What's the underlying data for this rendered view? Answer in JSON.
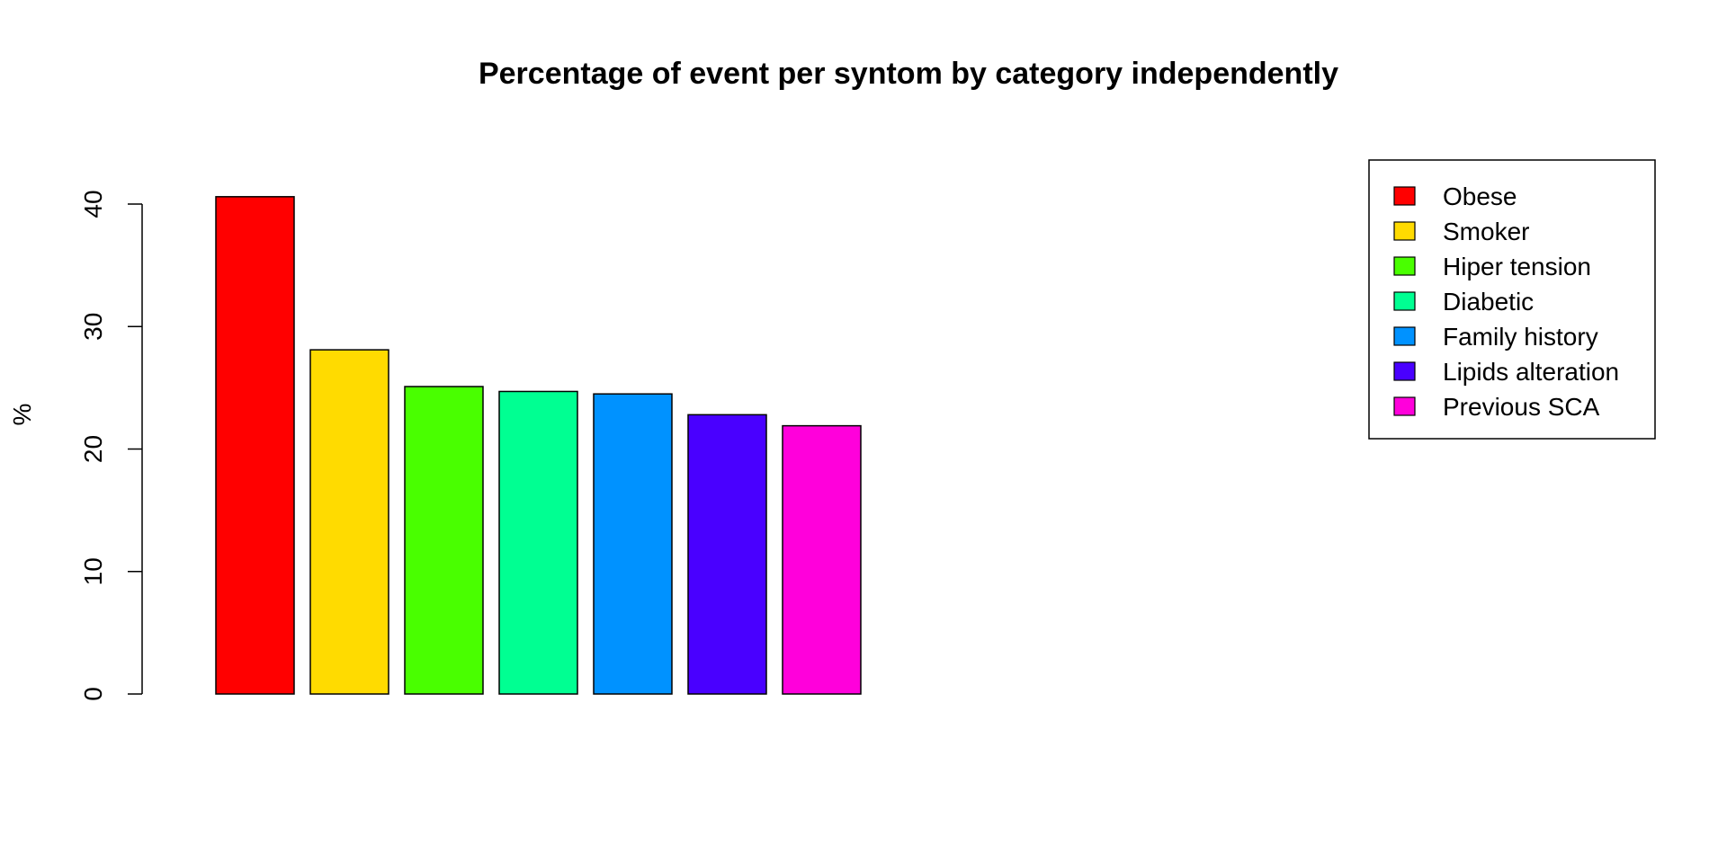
{
  "chart_data": {
    "type": "bar",
    "title": "Percentage of event per syntom by category independently",
    "xlabel": "",
    "ylabel": "%",
    "ylim": [
      0,
      40
    ],
    "yticks": [
      "0",
      "10",
      "20",
      "30",
      "40"
    ],
    "categories": [
      "Obese",
      "Smoker",
      "Hiper tension",
      "Diabetic",
      "Family history",
      "Lipids alteration",
      "Previous SCA"
    ],
    "values": [
      40.6,
      28.1,
      25.1,
      24.7,
      24.5,
      22.8,
      21.9
    ],
    "colors": [
      "#FF0000",
      "#FFDB00",
      "#49FF00",
      "#00FF92",
      "#0092FF",
      "#4900FF",
      "#FF00DB"
    ],
    "grid": false,
    "legend": {
      "position": "top-right",
      "entries": [
        "Obese",
        "Smoker",
        "Hiper tension",
        "Diabetic",
        "Family history",
        "Lipids alteration",
        "Previous SCA"
      ]
    }
  }
}
